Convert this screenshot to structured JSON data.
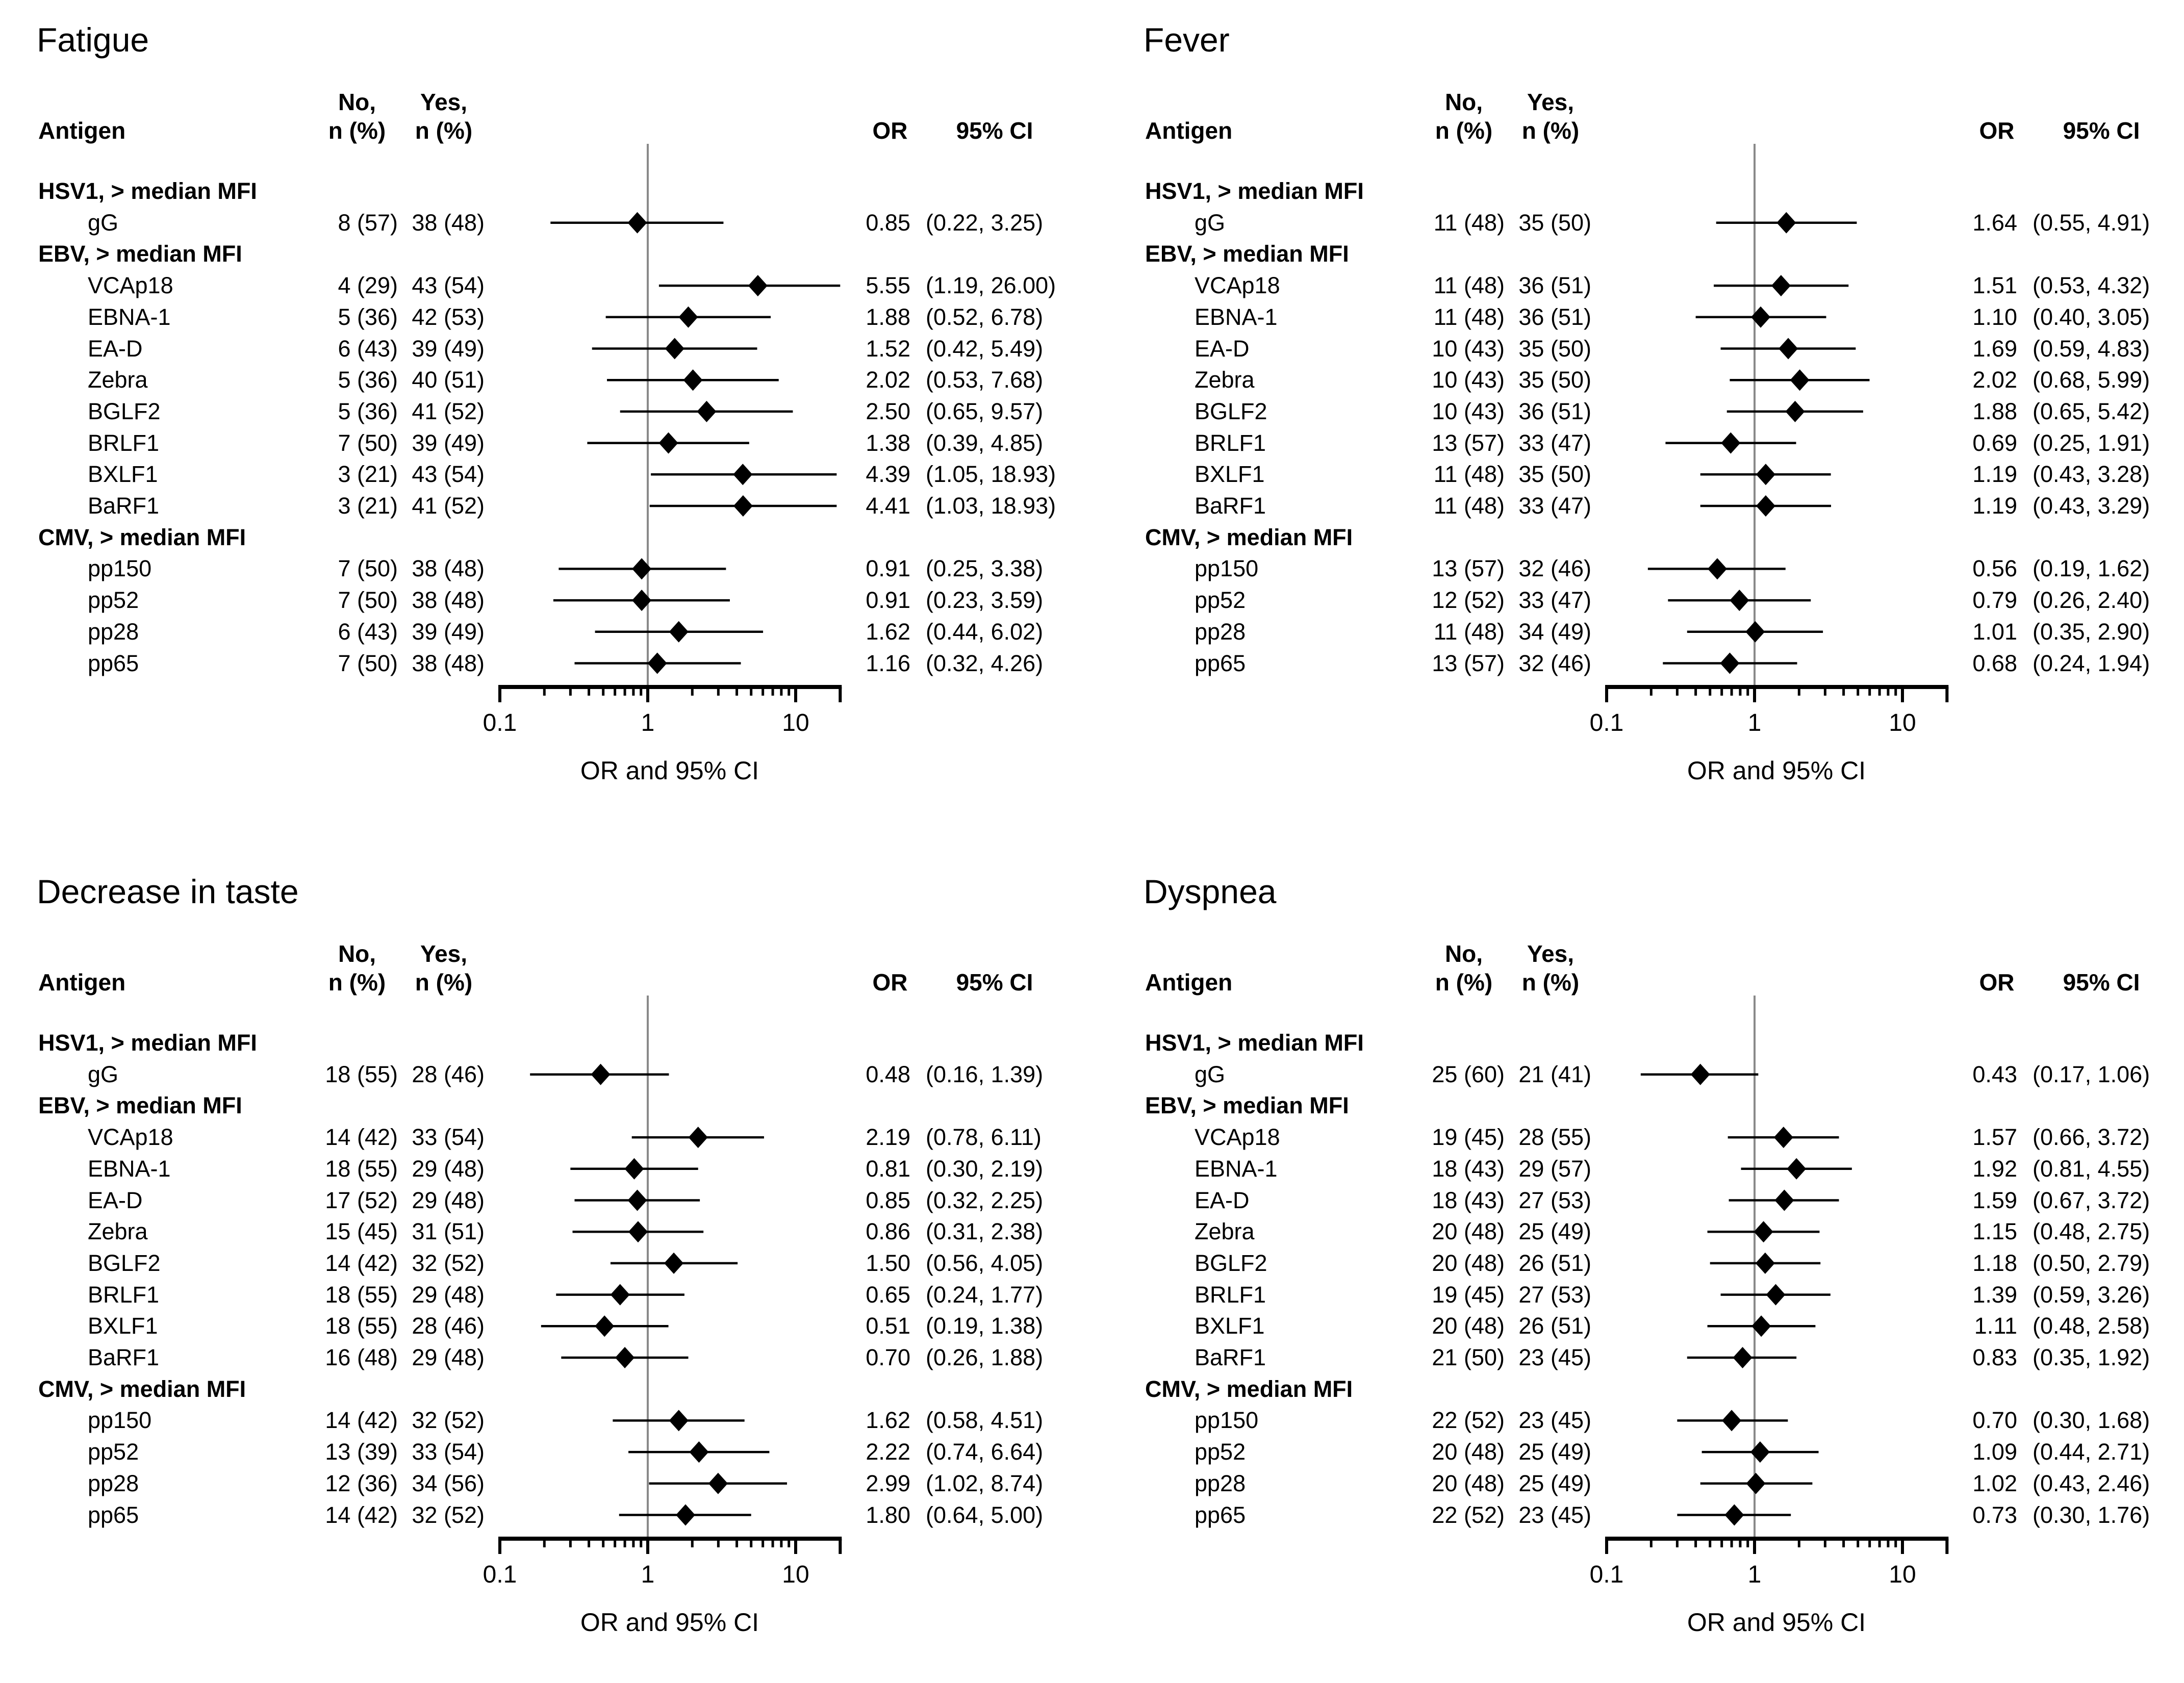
{
  "headers": {
    "antigen": "Antigen",
    "no_line1": "No,",
    "no_line2": "n (%)",
    "yes_line1": "Yes,",
    "yes_line2": "n (%)",
    "or": "OR",
    "ci": "95% CI"
  },
  "axis": {
    "label": "OR and 95% CI",
    "scale": "log",
    "min": 0.1,
    "max": 20,
    "major_ticks": [
      0.1,
      1,
      10
    ],
    "major_tick_labels": [
      "0.1",
      "1",
      "10"
    ],
    "minor_ticks": [
      0.2,
      0.3,
      0.4,
      0.5,
      0.6,
      0.7,
      0.8,
      0.9,
      2,
      3,
      4,
      5,
      6,
      7,
      8,
      9
    ],
    "reference_line": 1
  },
  "style": {
    "diamond_color": "#000000",
    "ci_line_color": "#000000",
    "axis_color": "#000000",
    "ref_line_color": "#8a8a8a",
    "text_color": "#000000",
    "background": "#ffffff"
  },
  "chart_data": [
    {
      "type": "forest",
      "title": "Fatigue",
      "xlabel": "OR and 95% CI",
      "xscale": "log",
      "xlim": [
        0.1,
        20
      ],
      "xticks": [
        0.1,
        1,
        10
      ],
      "ref_line": 1,
      "groups": [
        {
          "label": "HSV1, > median MFI",
          "rows": [
            {
              "antigen": "gG",
              "no": "8 (57)",
              "yes": "38 (48)",
              "or": 0.85,
              "ci_lo": 0.22,
              "ci_hi": 3.25,
              "or_label": "0.85",
              "ci_label": "(0.22, 3.25)"
            }
          ]
        },
        {
          "label": "EBV, > median MFI",
          "rows": [
            {
              "antigen": "VCAp18",
              "no": "4 (29)",
              "yes": "43 (54)",
              "or": 5.55,
              "ci_lo": 1.19,
              "ci_hi": 26.0,
              "or_label": "5.55",
              "ci_label": "(1.19, 26.00)"
            },
            {
              "antigen": "EBNA-1",
              "no": "5 (36)",
              "yes": "42 (53)",
              "or": 1.88,
              "ci_lo": 0.52,
              "ci_hi": 6.78,
              "or_label": "1.88",
              "ci_label": "(0.52, 6.78)"
            },
            {
              "antigen": "EA-D",
              "no": "6 (43)",
              "yes": "39 (49)",
              "or": 1.52,
              "ci_lo": 0.42,
              "ci_hi": 5.49,
              "or_label": "1.52",
              "ci_label": "(0.42, 5.49)"
            },
            {
              "antigen": "Zebra",
              "no": "5 (36)",
              "yes": "40 (51)",
              "or": 2.02,
              "ci_lo": 0.53,
              "ci_hi": 7.68,
              "or_label": "2.02",
              "ci_label": "(0.53, 7.68)"
            },
            {
              "antigen": "BGLF2",
              "no": "5 (36)",
              "yes": "41 (52)",
              "or": 2.5,
              "ci_lo": 0.65,
              "ci_hi": 9.57,
              "or_label": "2.50",
              "ci_label": "(0.65, 9.57)"
            },
            {
              "antigen": "BRLF1",
              "no": "7 (50)",
              "yes": "39 (49)",
              "or": 1.38,
              "ci_lo": 0.39,
              "ci_hi": 4.85,
              "or_label": "1.38",
              "ci_label": "(0.39, 4.85)"
            },
            {
              "antigen": "BXLF1",
              "no": "3 (21)",
              "yes": "43 (54)",
              "or": 4.39,
              "ci_lo": 1.05,
              "ci_hi": 18.93,
              "or_label": "4.39",
              "ci_label": "(1.05, 18.93)"
            },
            {
              "antigen": "BaRF1",
              "no": "3 (21)",
              "yes": "41 (52)",
              "or": 4.41,
              "ci_lo": 1.03,
              "ci_hi": 18.93,
              "or_label": "4.41",
              "ci_label": "(1.03, 18.93)"
            }
          ]
        },
        {
          "label": "CMV, > median MFI",
          "rows": [
            {
              "antigen": "pp150",
              "no": "7 (50)",
              "yes": "38 (48)",
              "or": 0.91,
              "ci_lo": 0.25,
              "ci_hi": 3.38,
              "or_label": "0.91",
              "ci_label": "(0.25, 3.38)"
            },
            {
              "antigen": "pp52",
              "no": "7 (50)",
              "yes": "38 (48)",
              "or": 0.91,
              "ci_lo": 0.23,
              "ci_hi": 3.59,
              "or_label": "0.91",
              "ci_label": "(0.23, 3.59)"
            },
            {
              "antigen": "pp28",
              "no": "6 (43)",
              "yes": "39 (49)",
              "or": 1.62,
              "ci_lo": 0.44,
              "ci_hi": 6.02,
              "or_label": "1.62",
              "ci_label": "(0.44, 6.02)"
            },
            {
              "antigen": "pp65",
              "no": "7 (50)",
              "yes": "38 (48)",
              "or": 1.16,
              "ci_lo": 0.32,
              "ci_hi": 4.26,
              "or_label": "1.16",
              "ci_label": "(0.32, 4.26)"
            }
          ]
        }
      ]
    },
    {
      "type": "forest",
      "title": "Fever",
      "xlabel": "OR and 95% CI",
      "xscale": "log",
      "xlim": [
        0.1,
        20
      ],
      "xticks": [
        0.1,
        1,
        10
      ],
      "ref_line": 1,
      "groups": [
        {
          "label": "HSV1, > median MFI",
          "rows": [
            {
              "antigen": "gG",
              "no": "11 (48)",
              "yes": "35 (50)",
              "or": 1.64,
              "ci_lo": 0.55,
              "ci_hi": 4.91,
              "or_label": "1.64",
              "ci_label": "(0.55, 4.91)"
            }
          ]
        },
        {
          "label": "EBV, > median MFI",
          "rows": [
            {
              "antigen": "VCAp18",
              "no": "11 (48)",
              "yes": "36 (51)",
              "or": 1.51,
              "ci_lo": 0.53,
              "ci_hi": 4.32,
              "or_label": "1.51",
              "ci_label": "(0.53, 4.32)"
            },
            {
              "antigen": "EBNA-1",
              "no": "11 (48)",
              "yes": "36 (51)",
              "or": 1.1,
              "ci_lo": 0.4,
              "ci_hi": 3.05,
              "or_label": "1.10",
              "ci_label": "(0.40, 3.05)"
            },
            {
              "antigen": "EA-D",
              "no": "10 (43)",
              "yes": "35 (50)",
              "or": 1.69,
              "ci_lo": 0.59,
              "ci_hi": 4.83,
              "or_label": "1.69",
              "ci_label": "(0.59, 4.83)"
            },
            {
              "antigen": "Zebra",
              "no": "10 (43)",
              "yes": "35 (50)",
              "or": 2.02,
              "ci_lo": 0.68,
              "ci_hi": 5.99,
              "or_label": "2.02",
              "ci_label": "(0.68, 5.99)"
            },
            {
              "antigen": "BGLF2",
              "no": "10 (43)",
              "yes": "36 (51)",
              "or": 1.88,
              "ci_lo": 0.65,
              "ci_hi": 5.42,
              "or_label": "1.88",
              "ci_label": "(0.65, 5.42)"
            },
            {
              "antigen": "BRLF1",
              "no": "13 (57)",
              "yes": "33 (47)",
              "or": 0.69,
              "ci_lo": 0.25,
              "ci_hi": 1.91,
              "or_label": "0.69",
              "ci_label": "(0.25, 1.91)"
            },
            {
              "antigen": "BXLF1",
              "no": "11 (48)",
              "yes": "35 (50)",
              "or": 1.19,
              "ci_lo": 0.43,
              "ci_hi": 3.28,
              "or_label": "1.19",
              "ci_label": "(0.43, 3.28)"
            },
            {
              "antigen": "BaRF1",
              "no": "11 (48)",
              "yes": "33 (47)",
              "or": 1.19,
              "ci_lo": 0.43,
              "ci_hi": 3.29,
              "or_label": "1.19",
              "ci_label": "(0.43, 3.29)"
            }
          ]
        },
        {
          "label": "CMV, > median MFI",
          "rows": [
            {
              "antigen": "pp150",
              "no": "13 (57)",
              "yes": "32 (46)",
              "or": 0.56,
              "ci_lo": 0.19,
              "ci_hi": 1.62,
              "or_label": "0.56",
              "ci_label": "(0.19, 1.62)"
            },
            {
              "antigen": "pp52",
              "no": "12 (52)",
              "yes": "33 (47)",
              "or": 0.79,
              "ci_lo": 0.26,
              "ci_hi": 2.4,
              "or_label": "0.79",
              "ci_label": "(0.26, 2.40)"
            },
            {
              "antigen": "pp28",
              "no": "11 (48)",
              "yes": "34 (49)",
              "or": 1.01,
              "ci_lo": 0.35,
              "ci_hi": 2.9,
              "or_label": "1.01",
              "ci_label": "(0.35, 2.90)"
            },
            {
              "antigen": "pp65",
              "no": "13 (57)",
              "yes": "32 (46)",
              "or": 0.68,
              "ci_lo": 0.24,
              "ci_hi": 1.94,
              "or_label": "0.68",
              "ci_label": "(0.24, 1.94)"
            }
          ]
        }
      ]
    },
    {
      "type": "forest",
      "title": "Decrease in taste",
      "xlabel": "OR and 95% CI",
      "xscale": "log",
      "xlim": [
        0.1,
        20
      ],
      "xticks": [
        0.1,
        1,
        10
      ],
      "ref_line": 1,
      "groups": [
        {
          "label": "HSV1, > median MFI",
          "rows": [
            {
              "antigen": "gG",
              "no": "18 (55)",
              "yes": "28 (46)",
              "or": 0.48,
              "ci_lo": 0.16,
              "ci_hi": 1.39,
              "or_label": "0.48",
              "ci_label": "(0.16, 1.39)"
            }
          ]
        },
        {
          "label": "EBV, > median MFI",
          "rows": [
            {
              "antigen": "VCAp18",
              "no": "14 (42)",
              "yes": "33 (54)",
              "or": 2.19,
              "ci_lo": 0.78,
              "ci_hi": 6.11,
              "or_label": "2.19",
              "ci_label": "(0.78, 6.11)"
            },
            {
              "antigen": "EBNA-1",
              "no": "18 (55)",
              "yes": "29 (48)",
              "or": 0.81,
              "ci_lo": 0.3,
              "ci_hi": 2.19,
              "or_label": "0.81",
              "ci_label": "(0.30, 2.19)"
            },
            {
              "antigen": "EA-D",
              "no": "17 (52)",
              "yes": "29 (48)",
              "or": 0.85,
              "ci_lo": 0.32,
              "ci_hi": 2.25,
              "or_label": "0.85",
              "ci_label": "(0.32, 2.25)"
            },
            {
              "antigen": "Zebra",
              "no": "15 (45)",
              "yes": "31 (51)",
              "or": 0.86,
              "ci_lo": 0.31,
              "ci_hi": 2.38,
              "or_label": "0.86",
              "ci_label": "(0.31, 2.38)"
            },
            {
              "antigen": "BGLF2",
              "no": "14 (42)",
              "yes": "32 (52)",
              "or": 1.5,
              "ci_lo": 0.56,
              "ci_hi": 4.05,
              "or_label": "1.50",
              "ci_label": "(0.56, 4.05)"
            },
            {
              "antigen": "BRLF1",
              "no": "18 (55)",
              "yes": "29 (48)",
              "or": 0.65,
              "ci_lo": 0.24,
              "ci_hi": 1.77,
              "or_label": "0.65",
              "ci_label": "(0.24, 1.77)"
            },
            {
              "antigen": "BXLF1",
              "no": "18 (55)",
              "yes": "28 (46)",
              "or": 0.51,
              "ci_lo": 0.19,
              "ci_hi": 1.38,
              "or_label": "0.51",
              "ci_label": "(0.19, 1.38)"
            },
            {
              "antigen": "BaRF1",
              "no": "16 (48)",
              "yes": "29 (48)",
              "or": 0.7,
              "ci_lo": 0.26,
              "ci_hi": 1.88,
              "or_label": "0.70",
              "ci_label": "(0.26, 1.88)"
            }
          ]
        },
        {
          "label": "CMV, > median MFI",
          "rows": [
            {
              "antigen": "pp150",
              "no": "14 (42)",
              "yes": "32 (52)",
              "or": 1.62,
              "ci_lo": 0.58,
              "ci_hi": 4.51,
              "or_label": "1.62",
              "ci_label": "(0.58, 4.51)"
            },
            {
              "antigen": "pp52",
              "no": "13 (39)",
              "yes": "33 (54)",
              "or": 2.22,
              "ci_lo": 0.74,
              "ci_hi": 6.64,
              "or_label": "2.22",
              "ci_label": "(0.74, 6.64)"
            },
            {
              "antigen": "pp28",
              "no": "12 (36)",
              "yes": "34 (56)",
              "or": 2.99,
              "ci_lo": 1.02,
              "ci_hi": 8.74,
              "or_label": "2.99",
              "ci_label": "(1.02, 8.74)"
            },
            {
              "antigen": "pp65",
              "no": "14 (42)",
              "yes": "32 (52)",
              "or": 1.8,
              "ci_lo": 0.64,
              "ci_hi": 5.0,
              "or_label": "1.80",
              "ci_label": "(0.64, 5.00)"
            }
          ]
        }
      ]
    },
    {
      "type": "forest",
      "title": "Dyspnea",
      "xlabel": "OR and 95% CI",
      "xscale": "log",
      "xlim": [
        0.1,
        20
      ],
      "xticks": [
        0.1,
        1,
        10
      ],
      "ref_line": 1,
      "groups": [
        {
          "label": "HSV1, > median MFI",
          "rows": [
            {
              "antigen": "gG",
              "no": "25 (60)",
              "yes": "21 (41)",
              "or": 0.43,
              "ci_lo": 0.17,
              "ci_hi": 1.06,
              "or_label": "0.43",
              "ci_label": "(0.17, 1.06)"
            }
          ]
        },
        {
          "label": "EBV, > median MFI",
          "rows": [
            {
              "antigen": "VCAp18",
              "no": "19 (45)",
              "yes": "28 (55)",
              "or": 1.57,
              "ci_lo": 0.66,
              "ci_hi": 3.72,
              "or_label": "1.57",
              "ci_label": "(0.66, 3.72)"
            },
            {
              "antigen": "EBNA-1",
              "no": "18 (43)",
              "yes": "29 (57)",
              "or": 1.92,
              "ci_lo": 0.81,
              "ci_hi": 4.55,
              "or_label": "1.92",
              "ci_label": "(0.81, 4.55)"
            },
            {
              "antigen": "EA-D",
              "no": "18 (43)",
              "yes": "27 (53)",
              "or": 1.59,
              "ci_lo": 0.67,
              "ci_hi": 3.72,
              "or_label": "1.59",
              "ci_label": "(0.67, 3.72)"
            },
            {
              "antigen": "Zebra",
              "no": "20 (48)",
              "yes": "25 (49)",
              "or": 1.15,
              "ci_lo": 0.48,
              "ci_hi": 2.75,
              "or_label": "1.15",
              "ci_label": "(0.48, 2.75)"
            },
            {
              "antigen": "BGLF2",
              "no": "20 (48)",
              "yes": "26 (51)",
              "or": 1.18,
              "ci_lo": 0.5,
              "ci_hi": 2.79,
              "or_label": "1.18",
              "ci_label": "(0.50, 2.79)"
            },
            {
              "antigen": "BRLF1",
              "no": "19 (45)",
              "yes": "27 (53)",
              "or": 1.39,
              "ci_lo": 0.59,
              "ci_hi": 3.26,
              "or_label": "1.39",
              "ci_label": "(0.59, 3.26)"
            },
            {
              "antigen": "BXLF1",
              "no": "20 (48)",
              "yes": "26 (51)",
              "or": 1.11,
              "ci_lo": 0.48,
              "ci_hi": 2.58,
              "or_label": "1.11",
              "ci_label": "(0.48, 2.58)"
            },
            {
              "antigen": "BaRF1",
              "no": "21 (50)",
              "yes": "23 (45)",
              "or": 0.83,
              "ci_lo": 0.35,
              "ci_hi": 1.92,
              "or_label": "0.83",
              "ci_label": "(0.35, 1.92)"
            }
          ]
        },
        {
          "label": "CMV, > median MFI",
          "rows": [
            {
              "antigen": "pp150",
              "no": "22 (52)",
              "yes": "23 (45)",
              "or": 0.7,
              "ci_lo": 0.3,
              "ci_hi": 1.68,
              "or_label": "0.70",
              "ci_label": "(0.30, 1.68)"
            },
            {
              "antigen": "pp52",
              "no": "20 (48)",
              "yes": "25 (49)",
              "or": 1.09,
              "ci_lo": 0.44,
              "ci_hi": 2.71,
              "or_label": "1.09",
              "ci_label": "(0.44, 2.71)"
            },
            {
              "antigen": "pp28",
              "no": "20 (48)",
              "yes": "25 (49)",
              "or": 1.02,
              "ci_lo": 0.43,
              "ci_hi": 2.46,
              "or_label": "1.02",
              "ci_label": "(0.43, 2.46)"
            },
            {
              "antigen": "pp65",
              "no": "22 (52)",
              "yes": "23 (45)",
              "or": 0.73,
              "ci_lo": 0.3,
              "ci_hi": 1.76,
              "or_label": "0.73",
              "ci_label": "(0.30, 1.76)"
            }
          ]
        }
      ]
    }
  ]
}
